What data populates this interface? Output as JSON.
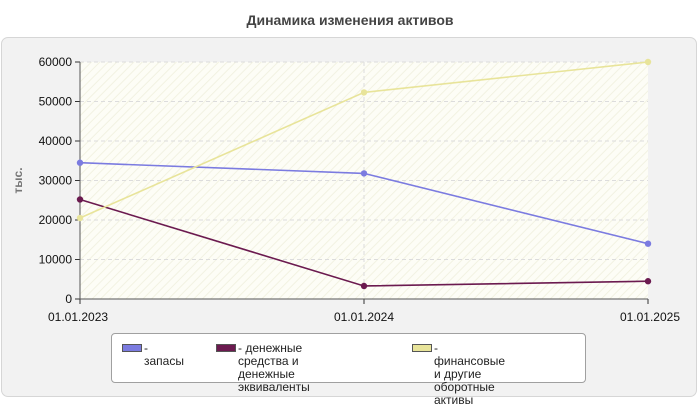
{
  "chart_data": {
    "type": "line",
    "title": "Динамика изменения активов",
    "ylabel": "тыс.",
    "xlabel": "",
    "x": [
      "01.01.2023",
      "01.01.2024",
      "01.01.2025"
    ],
    "ylim": [
      0,
      60000
    ],
    "yticks": [
      "0",
      "10000",
      "20000",
      "30000",
      "40000",
      "50000",
      "60000"
    ],
    "ytick_values": [
      0,
      10000,
      20000,
      30000,
      40000,
      50000,
      60000
    ],
    "grid": true,
    "legend_position": "bottom",
    "series": [
      {
        "name": "- запасы",
        "values": [
          34500,
          31800,
          14000
        ],
        "color": "#7b7be0"
      },
      {
        "name": "- денежные средства и\nденежные эквиваленты",
        "values": [
          25200,
          3300,
          4500
        ],
        "color": "#6b1a4f"
      },
      {
        "name": "- финансовые и другие\nоборотные активы",
        "values": [
          20500,
          52300,
          60000
        ],
        "color": "#e8e49a"
      }
    ]
  }
}
